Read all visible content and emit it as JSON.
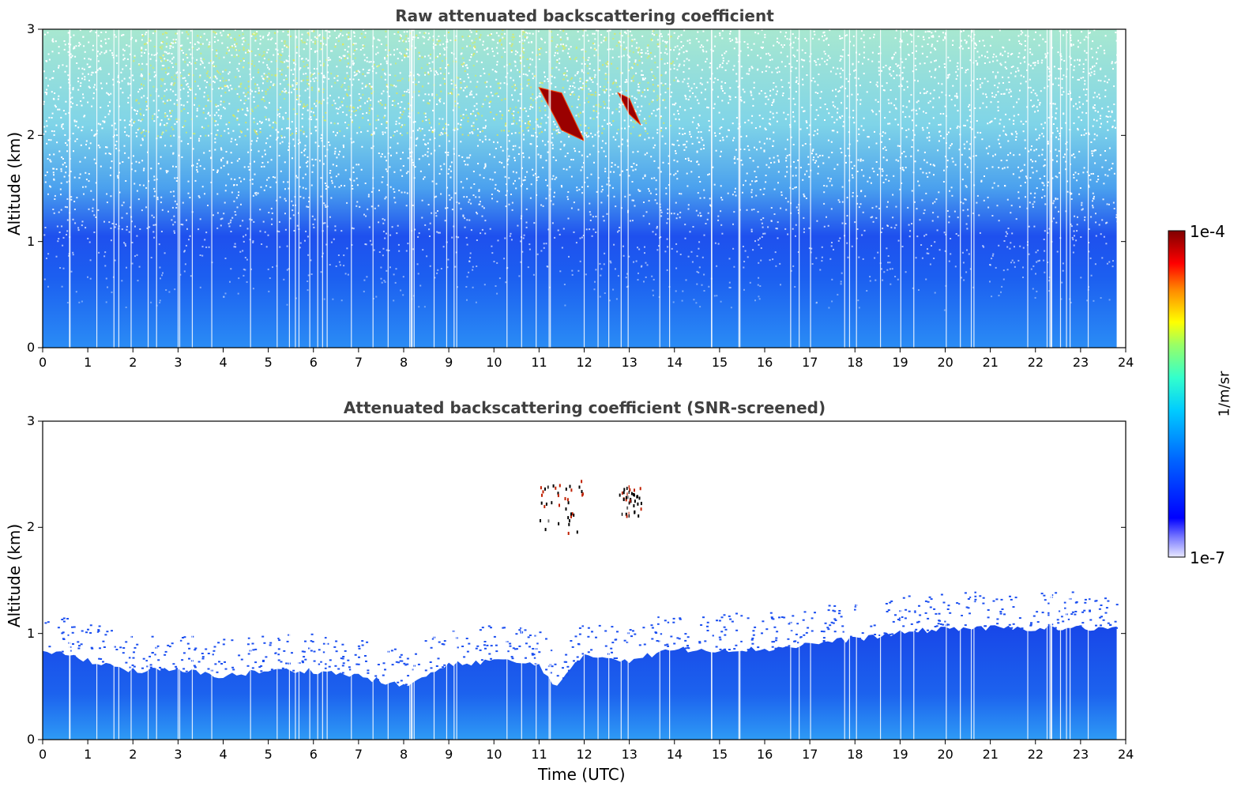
{
  "chart_data": [
    {
      "type": "heatmap",
      "title": "Raw attenuated backscattering coefficient",
      "xlabel": "",
      "ylabel": "Altitude (km)",
      "xlim": [
        0,
        24
      ],
      "ylim": [
        0,
        3
      ],
      "x_ticks": [
        "0",
        "1",
        "2",
        "3",
        "4",
        "5",
        "6",
        "7",
        "8",
        "9",
        "10",
        "11",
        "12",
        "13",
        "14",
        "15",
        "16",
        "17",
        "18",
        "19",
        "20",
        "21",
        "22",
        "23",
        "24"
      ],
      "y_ticks": [
        "0",
        "1",
        "2",
        "3"
      ],
      "data_end_hour": 23.8,
      "noisy_top": true,
      "features": [
        {
          "kind": "cloud",
          "x_start": 11.0,
          "x_end": 12.0,
          "y_start": 1.95,
          "y_end": 2.45
        },
        {
          "kind": "cloud",
          "x_start": 12.75,
          "x_end": 13.25,
          "y_start": 2.1,
          "y_end": 2.4
        }
      ],
      "boundary_layer_top": [
        [
          0,
          0.85
        ],
        [
          1,
          0.75
        ],
        [
          2,
          0.65
        ],
        [
          3,
          0.65
        ],
        [
          4,
          0.6
        ],
        [
          5,
          0.65
        ],
        [
          6,
          0.65
        ],
        [
          7,
          0.6
        ],
        [
          8,
          0.5
        ],
        [
          9,
          0.7
        ],
        [
          10,
          0.75
        ],
        [
          11,
          0.7
        ],
        [
          11.4,
          0.5
        ],
        [
          12,
          0.8
        ],
        [
          13,
          0.75
        ],
        [
          14,
          0.85
        ],
        [
          15,
          0.85
        ],
        [
          16,
          0.85
        ],
        [
          17,
          0.9
        ],
        [
          18,
          0.95
        ],
        [
          19,
          1.0
        ],
        [
          20,
          1.05
        ],
        [
          21,
          1.05
        ],
        [
          22,
          1.05
        ],
        [
          23,
          1.05
        ],
        [
          23.8,
          1.05
        ]
      ]
    },
    {
      "type": "heatmap",
      "title": "Attenuated backscattering coefficient (SNR-screened)",
      "xlabel": "Time (UTC)",
      "ylabel": "Altitude (km)",
      "xlim": [
        0,
        24
      ],
      "ylim": [
        0,
        3
      ],
      "x_ticks": [
        "0",
        "1",
        "2",
        "3",
        "4",
        "5",
        "6",
        "7",
        "8",
        "9",
        "10",
        "11",
        "12",
        "13",
        "14",
        "15",
        "16",
        "17",
        "18",
        "19",
        "20",
        "21",
        "22",
        "23",
        "24"
      ],
      "y_ticks": [
        "0",
        "1",
        "2",
        "3"
      ],
      "data_end_hour": 23.8,
      "noisy_top": false
    }
  ],
  "colorbar": {
    "max_label": "1e-4",
    "min_label": "1e-7",
    "unit": "1/m/sr",
    "colormap": "jet",
    "colors": [
      "#00007f",
      "#0000ff",
      "#007fff",
      "#00ffff",
      "#7fff7f",
      "#ffff00",
      "#ff7f00",
      "#ff0000",
      "#7f0000"
    ]
  }
}
